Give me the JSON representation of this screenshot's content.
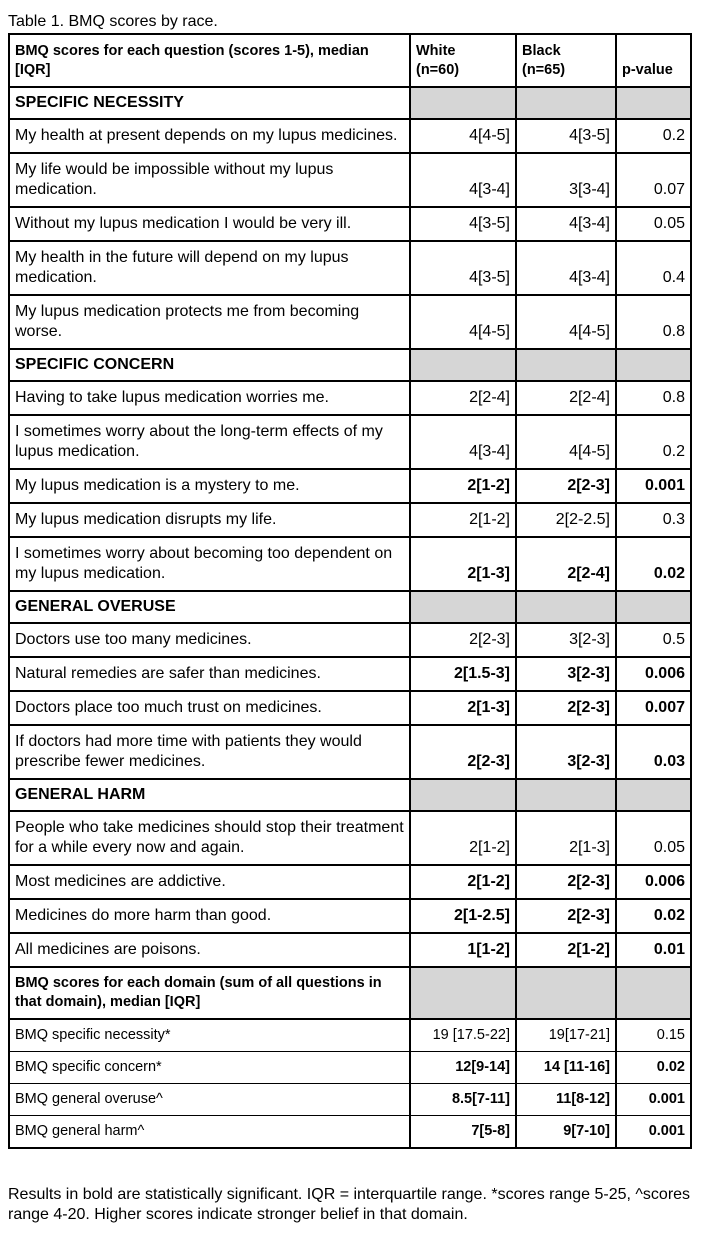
{
  "caption": "Table 1. BMQ scores by race.",
  "header": [
    "BMQ scores for each question (scores 1-5), median [IQR]",
    "White\n(n=60)",
    "Black\n(n=65)",
    "p-value"
  ],
  "sections": [
    {
      "title": "SPECIFIC NECESSITY",
      "rows": [
        {
          "cells": [
            "My health at present depends on my lupus medicines.",
            "4[4-5]",
            "4[3-5]",
            "0.2"
          ]
        },
        {
          "cells": [
            "My life would be impossible without my lupus medication.",
            "4[3-4]",
            "3[3-4]",
            "0.07"
          ]
        },
        {
          "cells": [
            "Without my lupus medication I would be very ill.",
            "4[3-5]",
            "4[3-4]",
            "0.05"
          ]
        },
        {
          "cells": [
            "My health in the future will depend on my lupus medication.",
            "4[3-5]",
            "4[3-4]",
            "0.4"
          ]
        },
        {
          "cells": [
            "My lupus medication protects me from becoming worse.",
            "4[4-5]",
            "4[4-5]",
            "0.8"
          ]
        }
      ]
    },
    {
      "title": "SPECIFIC CONCERN",
      "rows": [
        {
          "cells": [
            "Having to take lupus medication worries me.",
            "2[2-4]",
            "2[2-4]",
            "0.8"
          ]
        },
        {
          "cells": [
            "I sometimes worry about the long-term effects of my lupus medication.",
            "4[3-4]",
            "4[4-5]",
            "0.2"
          ]
        },
        {
          "cells": [
            "My lupus medication is a mystery to me.",
            "2[1-2]",
            "2[2-3]",
            "0.001"
          ],
          "bold": true
        },
        {
          "cells": [
            "My lupus medication disrupts my life.",
            "2[1-2]",
            "2[2-2.5]",
            "0.3"
          ]
        },
        {
          "cells": [
            "I sometimes worry about becoming too dependent on my lupus medication.",
            "2[1-3]",
            "2[2-4]",
            "0.02"
          ],
          "bold": true
        }
      ]
    },
    {
      "title": "GENERAL OVERUSE",
      "rows": [
        {
          "cells": [
            "Doctors use too many medicines.",
            "2[2-3]",
            "3[2-3]",
            "0.5"
          ]
        },
        {
          "cells": [
            "Natural remedies are safer than medicines.",
            "2[1.5-3]",
            "3[2-3]",
            "0.006"
          ],
          "bold": true
        },
        {
          "cells": [
            "Doctors place too much trust on medicines.",
            "2[1-3]",
            "2[2-3]",
            "0.007"
          ],
          "bold": true
        },
        {
          "cells": [
            "If doctors had more time with patients they would prescribe fewer medicines.",
            "2[2-3]",
            "3[2-3]",
            "0.03"
          ],
          "bold": true
        }
      ]
    },
    {
      "title": "GENERAL HARM",
      "rows": [
        {
          "cells": [
            "People who take medicines should stop their treatment for a while every now and again.",
            "2[1-2]",
            "2[1-3]",
            "0.05"
          ]
        },
        {
          "cells": [
            "Most medicines are addictive.",
            "2[1-2]",
            "2[2-3]",
            "0.006"
          ],
          "bold": true
        },
        {
          "cells": [
            "Medicines do more harm than good.",
            "2[1-2.5]",
            "2[2-3]",
            "0.02"
          ],
          "bold": true
        },
        {
          "cells": [
            "All medicines are poisons.",
            "1[1-2]",
            "2[1-2]",
            "0.01"
          ],
          "bold": true
        }
      ]
    }
  ],
  "domains": {
    "title": "BMQ scores for each domain (sum of all questions in that domain), median [IQR]",
    "rows": [
      {
        "cells": [
          "BMQ specific necessity*",
          "19 [17.5-22]",
          "19[17-21]",
          "0.15"
        ]
      },
      {
        "cells": [
          "BMQ specific concern*",
          "12[9-14]",
          "14 [11-16]",
          "0.02"
        ],
        "bold": true
      },
      {
        "cells": [
          "BMQ general overuse^",
          "8.5[7-11]",
          "11[8-12]",
          "0.001"
        ],
        "bold": true
      },
      {
        "cells": [
          "BMQ general harm^",
          "7[5-8]",
          "9[7-10]",
          "0.001"
        ],
        "bold": true
      }
    ]
  },
  "footnote": "Results in bold are statistically significant. IQR = interquartile range. *scores range 5-25, ^scores range 4-20. Higher scores indicate stronger belief in that domain."
}
